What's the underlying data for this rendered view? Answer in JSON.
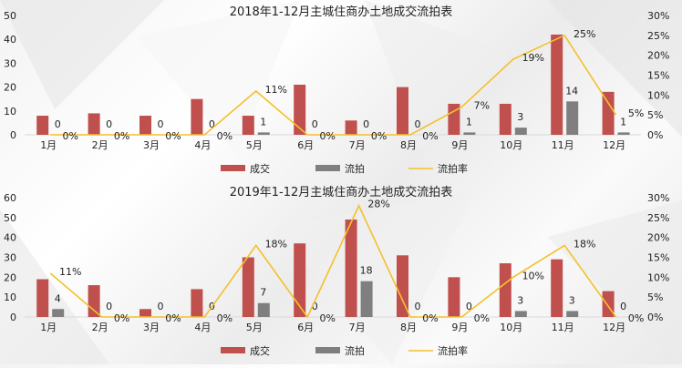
{
  "colors": {
    "deal": "#c0504d",
    "unsold": "#7f7f7f",
    "rate": "#f5c02c",
    "axis": "#d9d9d9",
    "text": "#222222"
  },
  "legend": {
    "deal": "成交",
    "unsold": "流拍",
    "rate": "流拍率"
  },
  "chart_data": [
    {
      "type": "bar",
      "title": "2018年1-12月主城住商办土地成交流拍表",
      "categories": [
        "1月",
        "2月",
        "3月",
        "4月",
        "5月",
        "6月",
        "7月",
        "8月",
        "9月",
        "10月",
        "11月",
        "12月"
      ],
      "series": [
        {
          "name": "成交",
          "type": "bar",
          "axis": "left",
          "values": [
            8,
            9,
            8,
            15,
            8,
            21,
            6,
            20,
            13,
            13,
            42,
            18
          ]
        },
        {
          "name": "流拍",
          "type": "bar",
          "axis": "left",
          "values": [
            0,
            0,
            0,
            0,
            1,
            0,
            0,
            0,
            1,
            3,
            14,
            1
          ],
          "labels": [
            "0",
            "0",
            "0",
            "0",
            "1",
            "0",
            "0",
            "0",
            "1",
            "3",
            "14",
            "1"
          ]
        },
        {
          "name": "流拍率",
          "type": "line",
          "axis": "right",
          "values": [
            0,
            0,
            0,
            0,
            11,
            0,
            0,
            0,
            7,
            19,
            25,
            5
          ],
          "labels": [
            "0%",
            "0%",
            "0%",
            "0%",
            "11%",
            "0%",
            "0%",
            "0%",
            "7%",
            "19%",
            "25%",
            "5%"
          ]
        }
      ],
      "left_axis": {
        "ticks": [
          "0",
          "10",
          "20",
          "30",
          "40",
          "50"
        ],
        "max": 50
      },
      "right_axis": {
        "ticks": [
          "0%",
          "5%",
          "10%",
          "15%",
          "20%",
          "25%",
          "30%"
        ],
        "max": 30
      },
      "legend_position": "bottom",
      "grid": false
    },
    {
      "type": "bar",
      "title": "2019年1-12月主城住商办土地成交流拍表",
      "categories": [
        "1月",
        "2月",
        "3月",
        "4月",
        "5月",
        "6月",
        "7月",
        "8月",
        "9月",
        "10月",
        "11月",
        "12月"
      ],
      "series": [
        {
          "name": "成交",
          "type": "bar",
          "axis": "left",
          "values": [
            19,
            16,
            4,
            14,
            30,
            37,
            49,
            31,
            20,
            27,
            29,
            13
          ]
        },
        {
          "name": "流拍",
          "type": "bar",
          "axis": "left",
          "values": [
            4,
            0,
            0,
            0,
            7,
            0,
            18,
            0,
            0,
            3,
            3,
            0
          ],
          "labels": [
            "4",
            "0",
            "0",
            "0",
            "7",
            "0",
            "18",
            "0",
            "0",
            "3",
            "3",
            "0"
          ]
        },
        {
          "name": "流拍率",
          "type": "line",
          "axis": "right",
          "values": [
            11,
            0,
            0,
            0,
            18,
            0,
            28,
            0,
            0,
            10,
            18,
            0
          ],
          "labels": [
            "11%",
            "0%",
            "0%",
            "0%",
            "18%",
            "0%",
            "28%",
            "0%",
            "0%",
            "10%",
            "18%",
            "0%"
          ]
        }
      ],
      "left_axis": {
        "ticks": [
          "0",
          "10",
          "20",
          "30",
          "40",
          "50",
          "60"
        ],
        "max": 60
      },
      "right_axis": {
        "ticks": [
          "0%",
          "5%",
          "10%",
          "15%",
          "20%",
          "25%",
          "30%"
        ],
        "max": 30
      },
      "legend_position": "bottom",
      "grid": false
    }
  ]
}
